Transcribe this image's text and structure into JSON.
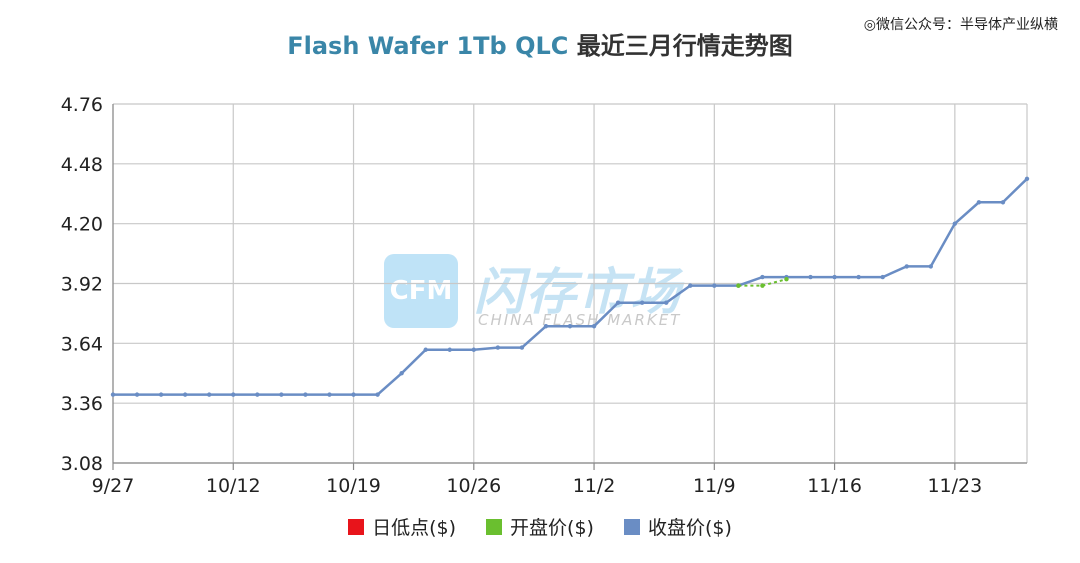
{
  "header": {
    "title_en": "Flash Wafer 1Tb QLC",
    "title_cn": "最近三月行情走势图",
    "account_tag": "◎微信公众号：半导体产业纵横"
  },
  "watermark": {
    "logo": "CFM",
    "brand_cn": "闪存市场",
    "brand_en": "CHINA FLASH MARKET"
  },
  "legend": [
    {
      "label": "日低点($)",
      "color": "#e8141b"
    },
    {
      "label": "开盘价($)",
      "color": "#6abf2f"
    },
    {
      "label": "收盘价($)",
      "color": "#6a8dc4"
    }
  ],
  "chart_data": {
    "type": "line",
    "title": "Flash Wafer 1Tb QLC 最近三月行情走势图",
    "x_tick_labels": [
      "9/27",
      "10/12",
      "10/19",
      "10/26",
      "11/2",
      "11/9",
      "11/16",
      "11/23"
    ],
    "y_tick_labels": [
      "3.08",
      "3.36",
      "3.64",
      "3.92",
      "4.20",
      "4.48",
      "4.76"
    ],
    "ylim": [
      3.08,
      4.76
    ],
    "grid": true,
    "legend_position": "bottom",
    "series": [
      {
        "name": "收盘价($)",
        "color": "#6a8dc4",
        "values": [
          3.4,
          3.4,
          3.4,
          3.4,
          3.4,
          3.4,
          3.4,
          3.4,
          3.4,
          3.4,
          3.4,
          3.4,
          3.5,
          3.61,
          3.61,
          3.61,
          3.62,
          3.62,
          3.72,
          3.72,
          3.72,
          3.83,
          3.83,
          3.83,
          3.91,
          3.91,
          3.91,
          3.95,
          3.95,
          3.95,
          3.95,
          3.95,
          3.95,
          4.0,
          4.0,
          4.2,
          4.3,
          4.3,
          4.41
        ]
      },
      {
        "name": "开盘价($)",
        "color": "#6abf2f",
        "values": [
          null,
          null,
          null,
          null,
          null,
          null,
          null,
          null,
          null,
          null,
          null,
          null,
          null,
          null,
          null,
          null,
          null,
          null,
          null,
          null,
          null,
          null,
          null,
          null,
          null,
          null,
          3.91,
          3.91,
          3.94,
          null,
          null,
          null,
          null,
          null,
          null,
          null,
          null,
          null,
          null
        ]
      }
    ]
  }
}
